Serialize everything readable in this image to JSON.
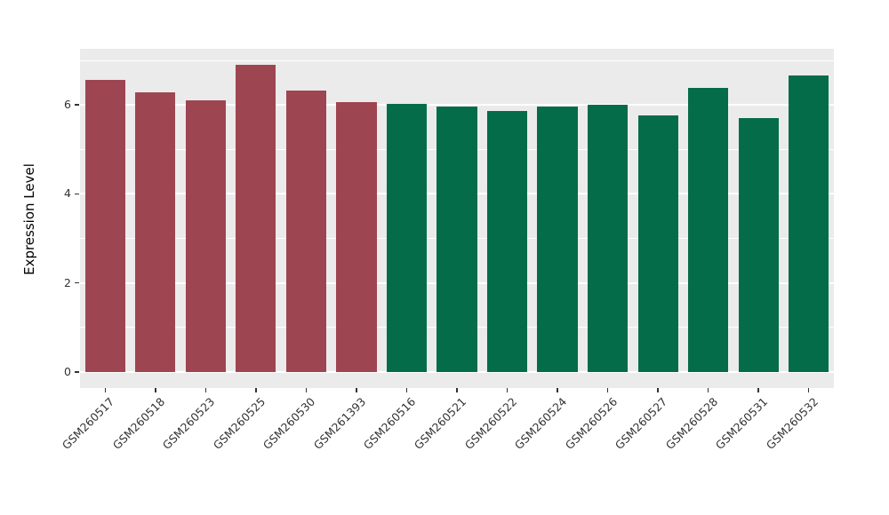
{
  "chart_data": {
    "type": "bar",
    "title": "",
    "xlabel": "",
    "ylabel": "Expression Level",
    "ylim": [
      -0.36,
      7.26
    ],
    "yticks_major": [
      0,
      2,
      4,
      6
    ],
    "yticks_minor": [
      1,
      3,
      5,
      7
    ],
    "grid": true,
    "legend": "none",
    "categories": [
      "GSM260517",
      "GSM260518",
      "GSM260523",
      "GSM260525",
      "GSM260530",
      "GSM261393",
      "GSM260516",
      "GSM260521",
      "GSM260522",
      "GSM260524",
      "GSM260526",
      "GSM260527",
      "GSM260528",
      "GSM260531",
      "GSM260532"
    ],
    "values": [
      6.57,
      6.28,
      6.1,
      6.9,
      6.32,
      6.07,
      6.03,
      5.97,
      5.86,
      5.97,
      6.01,
      5.76,
      6.38,
      5.7,
      6.67
    ],
    "groups": [
      "group1",
      "group1",
      "group1",
      "group1",
      "group1",
      "group1",
      "group2",
      "group2",
      "group2",
      "group2",
      "group2",
      "group2",
      "group2",
      "group2",
      "group2"
    ],
    "group_colors": {
      "group1": "#9E4552",
      "group2": "#046C49"
    },
    "style": {
      "panel_background": "#EBEBEB",
      "figure_background": "#FFFFFF",
      "gridline_color": "#FFFFFF",
      "axis_text_color": "#333333",
      "axis_title_color": "#000000"
    }
  }
}
